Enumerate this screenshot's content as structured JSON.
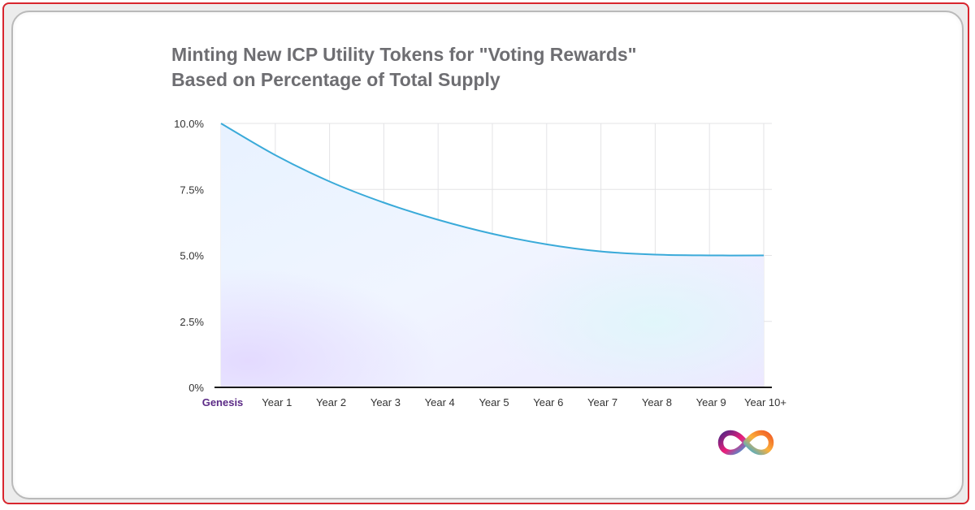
{
  "title_line1": "Minting New ICP Utility Tokens for \"Voting Rewards\"",
  "title_line2": "Based on Percentage of Total Supply",
  "colors": {
    "line": "#3aaad9",
    "grid": "#e3e3e6",
    "axis": "#1a1a1a",
    "genesis_label": "#5b2a86",
    "title": "#6e6e72"
  },
  "logo_icon": "internet-computer-infinity-logo",
  "chart_data": {
    "type": "area",
    "title": "Minting New ICP Utility Tokens for \"Voting Rewards\" Based on Percentage of Total Supply",
    "xlabel": "",
    "ylabel": "",
    "categories": [
      "Genesis",
      "Year 1",
      "Year 2",
      "Year 3",
      "Year 4",
      "Year 5",
      "Year  6",
      "Year 7",
      "Year 8",
      "Year  9",
      "Year 10+"
    ],
    "values": [
      10.0,
      8.8,
      7.8,
      7.0,
      6.35,
      5.82,
      5.42,
      5.15,
      5.03,
      5.0,
      5.0
    ],
    "y_ticks": [
      0,
      2.5,
      5.0,
      7.5,
      10.0
    ],
    "y_tick_labels": [
      "0%",
      "2.5%",
      "5.0%",
      "7.5%",
      "10.0%"
    ],
    "ylim": [
      0,
      10
    ],
    "grid": true,
    "legend": "none"
  }
}
